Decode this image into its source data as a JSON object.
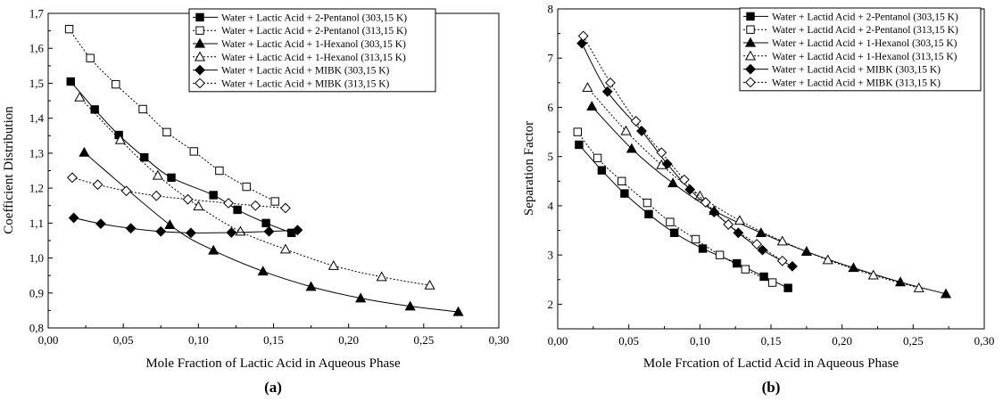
{
  "chart_data": [
    {
      "type": "line",
      "panel_label": "(a)",
      "xlabel": "Mole Fraction of Lactic Acid in Aqueous Phase",
      "ylabel": "Coefficient Distribution",
      "xlim": [
        0,
        0.3
      ],
      "ylim": [
        0.8,
        1.7
      ],
      "x_ticks": [
        0,
        0.05,
        0.1,
        0.15,
        0.2,
        0.25,
        0.3
      ],
      "x_tick_labels": [
        "0,00",
        "0,05",
        "0,10",
        "0,15",
        "0,20",
        "0,25",
        "0,30"
      ],
      "y_ticks": [
        0.8,
        0.9,
        1.0,
        1.1,
        1.2,
        1.3,
        1.4,
        1.5,
        1.6,
        1.7
      ],
      "y_tick_labels": [
        "0,8",
        "0,9",
        "1,0",
        "1,1",
        "1,2",
        "1,3",
        "1,4",
        "1,5",
        "1,6",
        "1,7"
      ],
      "grid": false,
      "legend_position": "top-right",
      "series": [
        {
          "name": "Water + Lactic Acid + 2-Pentanol (303,15 K)",
          "marker": "square",
          "filled": true,
          "dash": "solid",
          "x": [
            0.015,
            0.031,
            0.047,
            0.064,
            0.082,
            0.11,
            0.126,
            0.145,
            0.162
          ],
          "y": [
            1.505,
            1.425,
            1.352,
            1.288,
            1.23,
            1.18,
            1.138,
            1.1,
            1.072
          ]
        },
        {
          "name": "Water + Lactic Acid + 2-Pentanol (313,15 K)",
          "marker": "square",
          "filled": false,
          "dash": "dotted",
          "x": [
            0.014,
            0.028,
            0.045,
            0.063,
            0.079,
            0.097,
            0.114,
            0.132,
            0.151
          ],
          "y": [
            1.655,
            1.572,
            1.497,
            1.426,
            1.36,
            1.305,
            1.25,
            1.204,
            1.162
          ]
        },
        {
          "name": "Water + Lactic Acid + 1-Hexanol (303,15 K)",
          "marker": "triangle",
          "filled": true,
          "dash": "solid",
          "x": [
            0.024,
            0.081,
            0.11,
            0.143,
            0.175,
            0.208,
            0.241,
            0.273
          ],
          "y": [
            1.302,
            1.095,
            1.022,
            0.962,
            0.918,
            0.885,
            0.862,
            0.846
          ]
        },
        {
          "name": "Water + Lactic Acid + 1-Hexanol (313,15 K)",
          "marker": "triangle",
          "filled": false,
          "dash": "dotted",
          "x": [
            0.021,
            0.048,
            0.073,
            0.1,
            0.128,
            0.158,
            0.19,
            0.222,
            0.254
          ],
          "y": [
            1.46,
            1.338,
            1.236,
            1.148,
            1.076,
            1.025,
            0.978,
            0.946,
            0.922
          ]
        },
        {
          "name": "Water + Lactic Acid + MIBK (303,15 K)",
          "marker": "diamond",
          "filled": true,
          "dash": "solid",
          "x": [
            0.017,
            0.035,
            0.055,
            0.075,
            0.095,
            0.122,
            0.147,
            0.166
          ],
          "y": [
            1.115,
            1.098,
            1.085,
            1.076,
            1.072,
            1.073,
            1.076,
            1.08
          ]
        },
        {
          "name": "Water + Lactic Acid + MIBK (313,15 K)",
          "marker": "diamond",
          "filled": false,
          "dash": "dotted",
          "x": [
            0.016,
            0.033,
            0.052,
            0.072,
            0.093,
            0.12,
            0.138,
            0.158
          ],
          "y": [
            1.23,
            1.21,
            1.192,
            1.178,
            1.168,
            1.157,
            1.15,
            1.143
          ]
        }
      ]
    },
    {
      "type": "line",
      "panel_label": "(b)",
      "xlabel": "Mole Frcation of Lactid Acid in Aqueous Phase",
      "ylabel": "Separation Factor",
      "xlim": [
        0,
        0.3
      ],
      "ylim": [
        1.5,
        8
      ],
      "x_ticks": [
        0,
        0.05,
        0.1,
        0.15,
        0.2,
        0.25,
        0.3
      ],
      "x_tick_labels": [
        "0,00",
        "0,05",
        "0,10",
        "0,15",
        "0,20",
        "0,25",
        "0,30"
      ],
      "y_ticks": [
        2,
        3,
        4,
        5,
        6,
        7,
        8
      ],
      "y_tick_labels": [
        "2",
        "3",
        "4",
        "5",
        "6",
        "7",
        "8"
      ],
      "grid": false,
      "legend_position": "top-right",
      "series": [
        {
          "name": "Water + Lactid Acid + 2-Pentanol (303,15 K)",
          "marker": "square",
          "filled": true,
          "dash": "solid",
          "x": [
            0.015,
            0.031,
            0.047,
            0.064,
            0.082,
            0.102,
            0.126,
            0.145,
            0.162
          ],
          "y": [
            5.24,
            4.72,
            4.25,
            3.83,
            3.45,
            3.13,
            2.83,
            2.56,
            2.33
          ]
        },
        {
          "name": "Water + Lactid Acid + 2-Pentanol (313,15 K)",
          "marker": "square",
          "filled": false,
          "dash": "dotted",
          "x": [
            0.014,
            0.028,
            0.045,
            0.063,
            0.079,
            0.097,
            0.114,
            0.132,
            0.151
          ],
          "y": [
            5.5,
            4.97,
            4.5,
            4.06,
            3.67,
            3.32,
            3.0,
            2.71,
            2.44
          ]
        },
        {
          "name": "Water + Lactid Acid + 1-Hexanol (303,15 K)",
          "marker": "triangle",
          "filled": true,
          "dash": "solid",
          "x": [
            0.024,
            0.052,
            0.081,
            0.11,
            0.143,
            0.175,
            0.208,
            0.241,
            0.273
          ],
          "y": [
            6.02,
            5.16,
            4.46,
            3.9,
            3.45,
            3.07,
            2.74,
            2.45,
            2.21
          ]
        },
        {
          "name": "Water + Lactid Acid + 1-Hexanol (313,15 K)",
          "marker": "triangle",
          "filled": false,
          "dash": "dotted",
          "x": [
            0.021,
            0.048,
            0.073,
            0.1,
            0.128,
            0.158,
            0.19,
            0.222,
            0.254
          ],
          "y": [
            6.4,
            5.52,
            4.83,
            4.2,
            3.7,
            3.28,
            2.9,
            2.59,
            2.33
          ]
        },
        {
          "name": "Water + Lactid Acid + MIBK (303,15 K)",
          "marker": "diamond",
          "filled": true,
          "dash": "solid",
          "x": [
            0.017,
            0.035,
            0.059,
            0.077,
            0.093,
            0.11,
            0.127,
            0.144,
            0.165
          ],
          "y": [
            7.3,
            6.32,
            5.52,
            4.85,
            4.33,
            3.87,
            3.45,
            3.1,
            2.77
          ]
        },
        {
          "name": "Water + Lactid Acid + MIBK (313,15 K)",
          "marker": "diamond",
          "filled": false,
          "dash": "dotted",
          "x": [
            0.018,
            0.037,
            0.055,
            0.073,
            0.089,
            0.104,
            0.12,
            0.14,
            0.158
          ],
          "y": [
            7.45,
            6.5,
            5.72,
            5.08,
            4.53,
            4.07,
            3.62,
            3.22,
            2.88
          ]
        }
      ]
    }
  ]
}
